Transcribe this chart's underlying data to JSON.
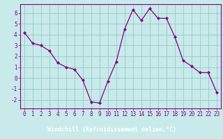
{
  "x": [
    0,
    1,
    2,
    3,
    4,
    5,
    6,
    7,
    8,
    9,
    10,
    11,
    12,
    13,
    14,
    15,
    16,
    17,
    18,
    19,
    20,
    21,
    22,
    23
  ],
  "y": [
    4.2,
    3.2,
    3.0,
    2.5,
    1.4,
    1.0,
    0.8,
    -0.2,
    -2.2,
    -2.3,
    -0.3,
    1.5,
    4.5,
    6.3,
    5.3,
    6.4,
    5.5,
    5.5,
    3.8,
    1.6,
    1.1,
    0.5,
    0.5,
    -1.3
  ],
  "line_color": "#800080",
  "marker": "D",
  "marker_size": 2.0,
  "bg_color": "#c8eaea",
  "grid_color": "#98c8c8",
  "axis_bar_color": "#800080",
  "xlabel": "Windchill (Refroidissement éolien,°C)",
  "tick_color": "#800080",
  "ylim": [
    -2.8,
    6.8
  ],
  "xlim": [
    -0.5,
    23.5
  ],
  "yticks": [
    -2,
    -1,
    0,
    1,
    2,
    3,
    4,
    5,
    6
  ],
  "xticks": [
    0,
    1,
    2,
    3,
    4,
    5,
    6,
    7,
    8,
    9,
    10,
    11,
    12,
    13,
    14,
    15,
    16,
    17,
    18,
    19,
    20,
    21,
    22,
    23
  ],
  "tick_fontsize": 5.5,
  "label_fontsize": 6.0
}
